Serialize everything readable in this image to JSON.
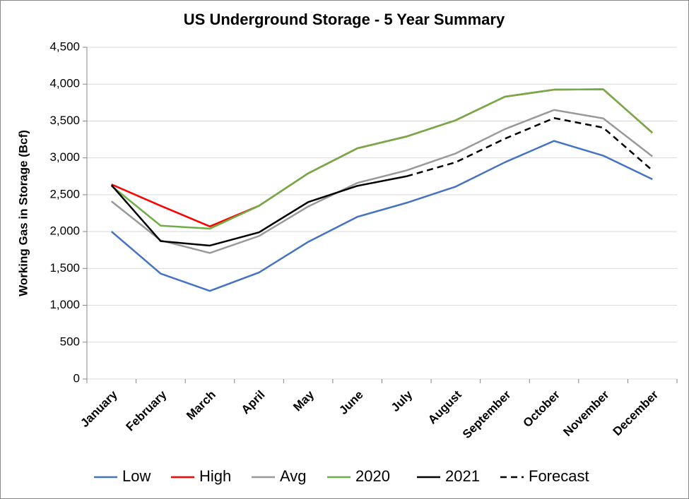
{
  "chart_data": {
    "type": "line",
    "title": "US Underground Storage - 5 Year Summary",
    "y_label": "Working Gas in Storage (Bcf)",
    "categories": [
      "January",
      "February",
      "March",
      "April",
      "May",
      "June",
      "July",
      "August",
      "September",
      "October",
      "November",
      "December"
    ],
    "series": [
      {
        "name": "Low",
        "color": "#4472c4",
        "values": [
          2000,
          1430,
          1195,
          1445,
          1860,
          2200,
          2390,
          2610,
          2940,
          3230,
          3030,
          2710
        ]
      },
      {
        "name": "High",
        "color": "#ff0000",
        "values": [
          2640,
          2350,
          2070,
          2350,
          2790,
          3130,
          3290,
          3510,
          3830,
          3925,
          3930,
          3340
        ]
      },
      {
        "name": "Avg",
        "color": "#999999",
        "values": [
          2410,
          1880,
          1710,
          1940,
          2340,
          2660,
          2830,
          3060,
          3390,
          3650,
          3535,
          3020
        ]
      },
      {
        "name": "2020",
        "color": "#70ad47",
        "values": [
          2620,
          2080,
          2040,
          2350,
          2790,
          3130,
          3290,
          3510,
          3830,
          3925,
          3930,
          3340
        ]
      },
      {
        "name": "2021",
        "color": "#000000",
        "values": [
          2630,
          1870,
          1810,
          1990,
          2400,
          2620,
          2750,
          null,
          null,
          null,
          null,
          null
        ]
      },
      {
        "name": "Forecast",
        "color": "#000000",
        "style": "dashed",
        "values": [
          null,
          null,
          null,
          null,
          null,
          null,
          2750,
          2940,
          3260,
          3540,
          3410,
          2830
        ]
      }
    ],
    "ylim": [
      0,
      4500
    ],
    "yticks": [
      0,
      500,
      {
        "value": 1000,
        "label": "1,000"
      },
      {
        "value": 1500,
        "label": "1,500"
      },
      {
        "value": 2000,
        "label": "2,000"
      },
      {
        "value": 2500,
        "label": "2,500"
      },
      {
        "value": 3000,
        "label": "3,000"
      },
      {
        "value": 3500,
        "label": "3,500"
      },
      {
        "value": 4000,
        "label": "4,000"
      },
      {
        "value": 4500,
        "label": "4,500"
      }
    ],
    "grid": true,
    "legend": "bottom"
  }
}
